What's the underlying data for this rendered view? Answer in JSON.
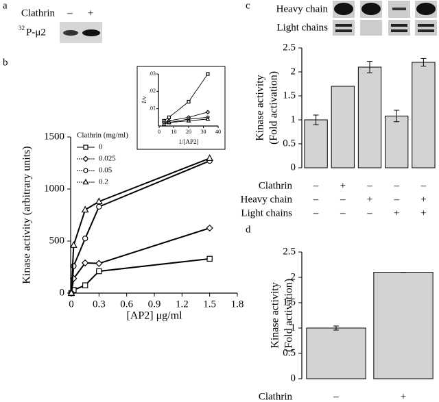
{
  "panel_a": {
    "panel": "a",
    "condition": "Clathrin",
    "marks": [
      "–",
      "+"
    ],
    "label_superscript": "32",
    "label": "P-μ2"
  },
  "chart_data": [
    {
      "type": "line",
      "panel": "b",
      "xlabel": "[AP2] μg/ml",
      "ylabel": "Kinase activity (arbitrary units)",
      "x": [
        0,
        0.025,
        0.15,
        0.3,
        1.5
      ],
      "xlim": [
        0,
        1.8
      ],
      "xticks": [
        0,
        0.3,
        0.6,
        0.9,
        1.2,
        1.5,
        1.8
      ],
      "ylim": [
        0,
        1500
      ],
      "yticks": [
        0,
        500,
        1000,
        1500
      ],
      "legend": "upper left",
      "legend_title": "Clathrin (mg/ml)",
      "series": [
        {
          "name": "0",
          "marker": "square",
          "color": "#000000",
          "values": [
            0,
            30,
            75,
            210,
            330
          ]
        },
        {
          "name": "0.025",
          "marker": "diamond",
          "color": "#000000",
          "values": [
            0,
            140,
            290,
            285,
            625
          ]
        },
        {
          "name": "0.05",
          "marker": "circle",
          "color": "#000000",
          "values": [
            0,
            260,
            525,
            830,
            1270
          ]
        },
        {
          "name": "0.2",
          "marker": "triangle",
          "color": "#000000",
          "values": [
            0,
            460,
            800,
            880,
            1295
          ]
        }
      ]
    },
    {
      "type": "line",
      "xlabel": "1/[AP2]",
      "ylabel": "1/v",
      "x": [
        3.3,
        6.7,
        20,
        33
      ],
      "xlim": [
        0,
        40
      ],
      "xticks": [
        0,
        10,
        20,
        30,
        40
      ],
      "ylim": [
        0,
        0.03
      ],
      "yticks": [
        {
          "value": 0.01,
          "label": ".01"
        },
        {
          "value": 0.02,
          "label": ".02"
        },
        {
          "value": 0.03,
          "label": ".03"
        }
      ],
      "series": [
        {
          "name": "0",
          "marker": "square",
          "color": "#000000",
          "values": [
            0.003,
            0.005,
            0.014,
            0.03
          ]
        },
        {
          "name": "0.025",
          "marker": "diamond",
          "color": "#000000",
          "values": [
            0.002,
            0.003,
            0.005,
            0.008
          ]
        },
        {
          "name": "0.05",
          "marker": "circle",
          "color": "#000000",
          "values": [
            0.002,
            0.002,
            0.004,
            0.005
          ]
        },
        {
          "name": "0.2",
          "marker": "triangle",
          "color": "#000000",
          "values": [
            0.001,
            0.002,
            0.003,
            0.004
          ]
        }
      ]
    },
    {
      "type": "bar",
      "panel": "c",
      "gel_rows": [
        "Heavy chain",
        "Light chains"
      ],
      "ylabel": [
        "Kinase activity",
        "(Fold activation)"
      ],
      "color": "#d3d3d3",
      "values": [
        1,
        1.7,
        2.1,
        1.08,
        2.2
      ],
      "errors": [
        0.1,
        0,
        0.12,
        0.12,
        0.08
      ],
      "ylim": [
        0,
        2.5
      ],
      "yticks": [
        0,
        0.5,
        1,
        1.5,
        2,
        2.5
      ],
      "conditions": [
        {
          "name": "Clathrin",
          "marks": [
            "–",
            "+",
            "–",
            "–",
            "–"
          ]
        },
        {
          "name": "Heavy chain",
          "marks": [
            "–",
            "–",
            "+",
            "–",
            "+"
          ]
        },
        {
          "name": "Light chains",
          "marks": [
            "–",
            "–",
            "–",
            "+",
            "+"
          ]
        }
      ]
    },
    {
      "type": "bar",
      "panel": "d",
      "ylabel": [
        "Kinase activity",
        "(Fold activation)"
      ],
      "color": "#d3d3d3",
      "values": [
        1,
        2.1
      ],
      "errors": [
        0.04,
        0
      ],
      "ylim": [
        0,
        2.5
      ],
      "yticks": [
        0,
        0.5,
        1,
        1.5,
        2,
        2.5
      ],
      "conditions": [
        {
          "name": "Clathrin",
          "marks": [
            "–",
            "+"
          ]
        }
      ]
    }
  ]
}
